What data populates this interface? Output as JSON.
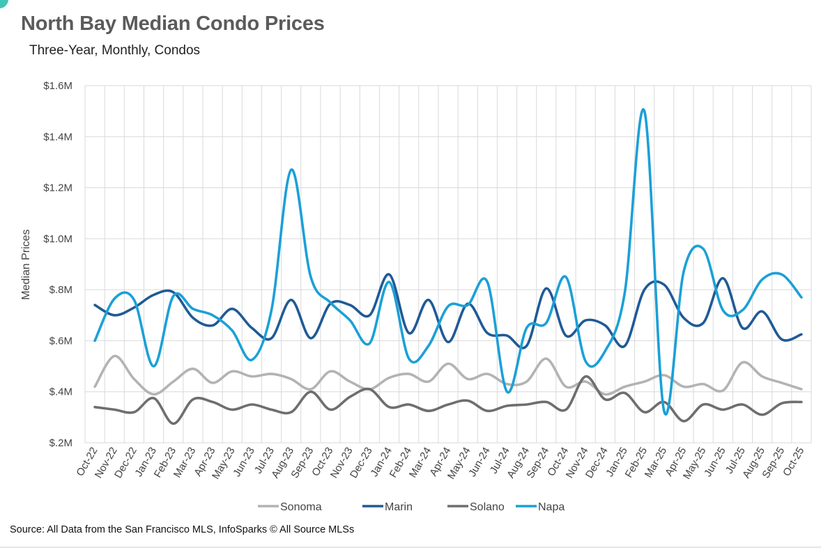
{
  "header": {
    "title": "North Bay Median Condo Prices",
    "subtitle": "Three-Year, Monthly, Condos"
  },
  "footer": {
    "source": "Source: All Data from the San Francisco MLS, InfoSparks © All Source MLSs"
  },
  "chart_data": {
    "type": "line",
    "title": "North Bay Median Condo Prices",
    "subtitle": "Three-Year, Monthly, Condos",
    "ylabel": "Median Prices",
    "xlabel": "",
    "ylim": [
      200000,
      1600000
    ],
    "yticks": [
      200000,
      400000,
      600000,
      800000,
      1000000,
      1200000,
      1400000,
      1600000
    ],
    "ytick_labels": [
      "$.2M",
      "$.4M",
      "$.6M",
      "$.8M",
      "$1.0M",
      "$1.2M",
      "$1.4M",
      "$1.6M"
    ],
    "grid": true,
    "legend_position": "bottom",
    "smooth": true,
    "categories": [
      "Oct-22",
      "Nov-22",
      "Dec-22",
      "Jan-23",
      "Feb-23",
      "Mar-23",
      "Apr-23",
      "May-23",
      "Jun-23",
      "Jul-23",
      "Aug-23",
      "Sep-23",
      "Oct-23",
      "Nov-23",
      "Dec-23",
      "Jan-24",
      "Feb-24",
      "Mar-24",
      "Apr-24",
      "May-24",
      "Jun-24",
      "Jul-24",
      "Aug-24",
      "Sep-24",
      "Oct-24",
      "Nov-24",
      "Dec-24",
      "Jan-25",
      "Feb-25",
      "Mar-25",
      "Apr-25",
      "May-25",
      "Jun-25",
      "Jul-25",
      "Aug-25",
      "Sep-25",
      "Oct-25"
    ],
    "series": [
      {
        "name": "Sonoma",
        "color": "#b3b3b3",
        "values": [
          420000,
          540000,
          450000,
          390000,
          440000,
          490000,
          435000,
          480000,
          460000,
          470000,
          450000,
          410000,
          480000,
          440000,
          410000,
          455000,
          470000,
          440000,
          510000,
          450000,
          470000,
          430000,
          440000,
          530000,
          420000,
          440000,
          390000,
          420000,
          440000,
          465000,
          420000,
          430000,
          405000,
          515000,
          460000,
          435000,
          410000
        ]
      },
      {
        "name": "Marin",
        "color": "#1f5a96",
        "values": [
          740000,
          700000,
          730000,
          780000,
          790000,
          690000,
          660000,
          725000,
          650000,
          610000,
          760000,
          610000,
          745000,
          740000,
          700000,
          860000,
          630000,
          760000,
          595000,
          745000,
          630000,
          620000,
          580000,
          805000,
          620000,
          680000,
          660000,
          580000,
          800000,
          820000,
          690000,
          670000,
          845000,
          650000,
          715000,
          605000,
          625000
        ]
      },
      {
        "name": "Solano",
        "color": "#6e6e6e",
        "values": [
          340000,
          330000,
          320000,
          375000,
          275000,
          370000,
          360000,
          330000,
          350000,
          330000,
          320000,
          400000,
          330000,
          380000,
          410000,
          340000,
          350000,
          325000,
          350000,
          365000,
          325000,
          345000,
          350000,
          360000,
          330000,
          460000,
          370000,
          395000,
          320000,
          360000,
          285000,
          350000,
          330000,
          350000,
          310000,
          355000,
          360000
        ]
      },
      {
        "name": "Napa",
        "color": "#1ba0d7",
        "values": [
          600000,
          765000,
          760000,
          500000,
          775000,
          725000,
          700000,
          640000,
          525000,
          720000,
          1270000,
          850000,
          750000,
          680000,
          590000,
          830000,
          530000,
          580000,
          735000,
          740000,
          830000,
          400000,
          650000,
          670000,
          850000,
          520000,
          560000,
          790000,
          1500000,
          325000,
          870000,
          960000,
          720000,
          720000,
          840000,
          860000,
          770000
        ]
      }
    ]
  }
}
